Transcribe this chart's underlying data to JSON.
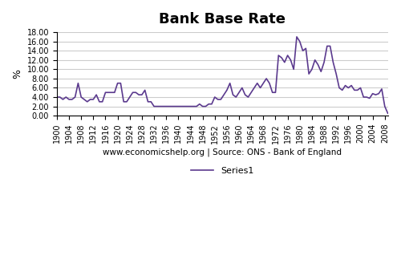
{
  "title": "Bank Base Rate",
  "xlabel": "www.economicshelp.org | Source: ONS - Bank of England",
  "ylabel": "%",
  "legend_label": "Series1",
  "line_color": "#5b3a8e",
  "background_color": "#ffffff",
  "grid_color": "#cccccc",
  "ylim": [
    0.0,
    18.0
  ],
  "yticks": [
    0.0,
    2.0,
    4.0,
    6.0,
    8.0,
    10.0,
    12.0,
    14.0,
    16.0,
    18.0
  ],
  "xtick_step": 4,
  "years": [
    1900,
    1901,
    1902,
    1903,
    1904,
    1905,
    1906,
    1907,
    1908,
    1909,
    1910,
    1911,
    1912,
    1913,
    1914,
    1915,
    1916,
    1917,
    1918,
    1919,
    1920,
    1921,
    1922,
    1923,
    1924,
    1925,
    1926,
    1927,
    1928,
    1929,
    1930,
    1931,
    1932,
    1933,
    1934,
    1935,
    1936,
    1937,
    1938,
    1939,
    1940,
    1941,
    1942,
    1943,
    1944,
    1945,
    1946,
    1947,
    1948,
    1949,
    1950,
    1951,
    1952,
    1953,
    1954,
    1955,
    1956,
    1957,
    1958,
    1959,
    1960,
    1961,
    1962,
    1963,
    1964,
    1965,
    1966,
    1967,
    1968,
    1969,
    1970,
    1971,
    1972,
    1973,
    1974,
    1975,
    1976,
    1977,
    1978,
    1979,
    1980,
    1981,
    1982,
    1983,
    1984,
    1985,
    1986,
    1987,
    1988,
    1989,
    1990,
    1991,
    1992,
    1993,
    1994,
    1995,
    1996,
    1997,
    1998,
    1999,
    2000,
    2001,
    2002,
    2003,
    2004,
    2005,
    2006,
    2007,
    2008,
    2009
  ],
  "rates": [
    4.0,
    4.0,
    3.5,
    4.0,
    3.5,
    3.5,
    4.0,
    7.0,
    4.0,
    3.5,
    3.0,
    3.5,
    3.5,
    4.5,
    3.0,
    3.0,
    5.0,
    5.0,
    5.0,
    5.0,
    7.0,
    7.0,
    3.0,
    3.0,
    4.0,
    5.0,
    5.0,
    4.5,
    4.5,
    5.5,
    3.0,
    3.0,
    2.0,
    2.0,
    2.0,
    2.0,
    2.0,
    2.0,
    2.0,
    2.0,
    2.0,
    2.0,
    2.0,
    2.0,
    2.0,
    2.0,
    2.0,
    2.5,
    2.0,
    2.0,
    2.5,
    2.5,
    4.0,
    3.5,
    3.5,
    4.5,
    5.5,
    7.0,
    4.5,
    4.0,
    5.0,
    6.0,
    4.5,
    4.0,
    5.0,
    6.0,
    7.0,
    6.0,
    7.0,
    8.0,
    7.0,
    5.0,
    5.0,
    13.0,
    12.5,
    11.5,
    13.0,
    12.0,
    10.0,
    17.0,
    16.0,
    14.0,
    14.5,
    9.0,
    10.0,
    12.0,
    11.0,
    9.5,
    11.5,
    15.0,
    15.0,
    11.5,
    9.0,
    6.0,
    5.5,
    6.5,
    6.0,
    6.5,
    5.5,
    5.5,
    6.0,
    4.0,
    4.0,
    3.75,
    4.75,
    4.5,
    4.75,
    5.75,
    2.0,
    0.5
  ]
}
